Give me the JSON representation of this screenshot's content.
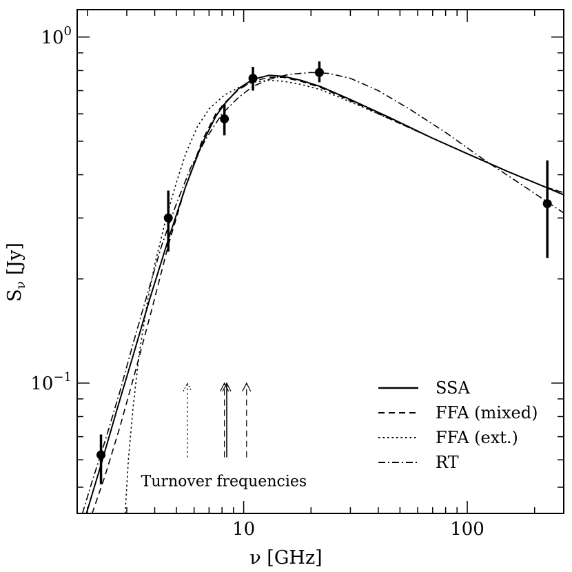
{
  "chart_data": {
    "type": "scatter",
    "xlabel": "ν [GHz]",
    "ylabel": "S_ν [Jy]",
    "xscale": "log",
    "yscale": "log",
    "xlim": [
      1.8,
      270
    ],
    "ylim": [
      0.042,
      1.2
    ],
    "x_tick_labels": [
      {
        "value": 10,
        "label": "10"
      },
      {
        "value": 100,
        "label": "100"
      }
    ],
    "y_tick_labels": [
      {
        "value": 1.0,
        "base": "10",
        "exp": "0"
      },
      {
        "value": 0.1,
        "base": "10",
        "exp": "−1"
      }
    ],
    "grid": false,
    "legend_position": "bottom-right",
    "points": [
      {
        "x": 2.3,
        "y": 0.062,
        "err_low": 0.051,
        "err_high": 0.071
      },
      {
        "x": 4.6,
        "y": 0.3,
        "err_low": 0.24,
        "err_high": 0.36
      },
      {
        "x": 8.2,
        "y": 0.58,
        "err_low": 0.52,
        "err_high": 0.64
      },
      {
        "x": 11.0,
        "y": 0.76,
        "err_low": 0.7,
        "err_high": 0.82
      },
      {
        "x": 21.8,
        "y": 0.79,
        "err_low": 0.74,
        "err_high": 0.85
      },
      {
        "x": 228,
        "y": 0.33,
        "err_low": 0.23,
        "err_high": 0.44
      }
    ],
    "series": [
      {
        "name": "SSA",
        "style": "solid",
        "x": [
          1.98,
          2.3,
          2.7,
          3.2,
          3.8,
          4.6,
          5.5,
          6.5,
          7.5,
          8.2,
          9.5,
          11,
          13,
          15,
          18,
          22,
          30,
          45,
          70,
          100,
          150,
          220,
          270
        ],
        "y": [
          0.042,
          0.058,
          0.083,
          0.12,
          0.175,
          0.26,
          0.37,
          0.49,
          0.59,
          0.64,
          0.71,
          0.755,
          0.775,
          0.77,
          0.75,
          0.72,
          0.66,
          0.585,
          0.51,
          0.46,
          0.41,
          0.37,
          0.35
        ]
      },
      {
        "name": "FFA (mixed)",
        "style": "dashed",
        "x": [
          2.1,
          2.4,
          2.8,
          3.3,
          3.9,
          4.6,
          5.5,
          6.5,
          7.5,
          8.2,
          9.5,
          11,
          13,
          15,
          18,
          22,
          30,
          45,
          70,
          100,
          150,
          220,
          270
        ],
        "y": [
          0.042,
          0.054,
          0.075,
          0.11,
          0.165,
          0.25,
          0.37,
          0.5,
          0.6,
          0.645,
          0.705,
          0.745,
          0.765,
          0.765,
          0.745,
          0.715,
          0.655,
          0.58,
          0.51,
          0.46,
          0.41,
          0.37,
          0.355
        ]
      },
      {
        "name": "FFA (ext.)",
        "style": "dotted",
        "x": [
          2.95,
          3.05,
          3.2,
          3.4,
          3.7,
          4.0,
          4.5,
          5.0,
          5.5,
          6.2,
          7.0,
          8.2,
          9.5,
          11,
          13,
          15,
          18,
          22,
          30,
          45,
          70,
          100,
          150,
          220,
          270
        ],
        "y": [
          0.042,
          0.06,
          0.085,
          0.12,
          0.17,
          0.22,
          0.3,
          0.38,
          0.46,
          0.55,
          0.62,
          0.68,
          0.715,
          0.74,
          0.75,
          0.745,
          0.73,
          0.705,
          0.65,
          0.58,
          0.51,
          0.46,
          0.41,
          0.37,
          0.355
        ]
      },
      {
        "name": "RT",
        "style": "dashdot",
        "x": [
          1.9,
          2.1,
          2.4,
          2.8,
          3.2,
          3.7,
          4.3,
          5.0,
          5.8,
          6.8,
          8.0,
          9.5,
          11,
          13,
          16,
          20,
          24,
          30,
          40,
          55,
          80,
          120,
          180,
          270
        ],
        "y": [
          0.042,
          0.052,
          0.068,
          0.095,
          0.13,
          0.18,
          0.25,
          0.33,
          0.42,
          0.51,
          0.6,
          0.67,
          0.72,
          0.755,
          0.78,
          0.79,
          0.785,
          0.76,
          0.7,
          0.62,
          0.53,
          0.44,
          0.37,
          0.31
        ]
      }
    ],
    "turnover_markers": [
      {
        "x": 5.6,
        "y_from": 0.061,
        "y_to": 0.1,
        "style": "dotted"
      },
      {
        "x": 8.4,
        "y_from": 0.061,
        "y_to": 0.1,
        "style": "solid"
      },
      {
        "x": 8.2,
        "y_from": 0.061,
        "y_to": 0.1,
        "style": "dashed"
      },
      {
        "x": 10.3,
        "y_from": 0.061,
        "y_to": 0.1,
        "style": "dashed"
      }
    ],
    "annotation": "Turnover frequencies"
  }
}
